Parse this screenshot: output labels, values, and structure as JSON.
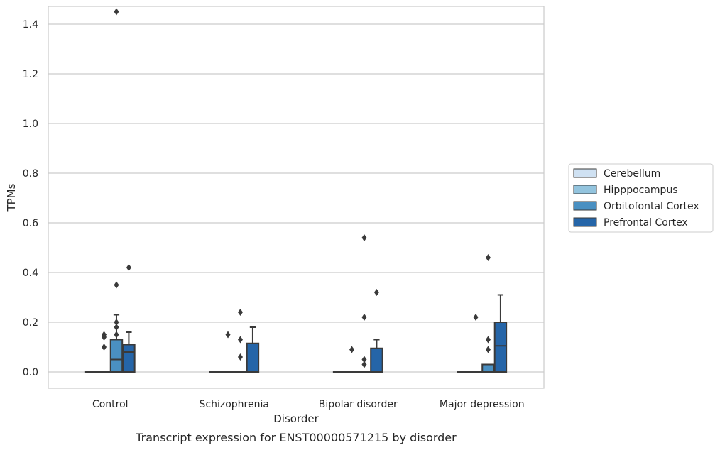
{
  "chart_data": {
    "type": "box",
    "xlabel": "Disorder",
    "ylabel": "TPMs",
    "caption": "Transcript expression for ENST00000571215 by disorder",
    "categories": [
      "Control",
      "Schizophrenia",
      "Bipolar disorder",
      "Major depression"
    ],
    "ylim": [
      -0.07,
      1.52
    ],
    "yticks": [
      0.0,
      0.2,
      0.4,
      0.6,
      0.8,
      1.0,
      1.2,
      1.4
    ],
    "ytick_labels": [
      "0.0",
      "0.2",
      "0.4",
      "0.6",
      "0.8",
      "1.0",
      "1.2",
      "1.4"
    ],
    "grid": "horizontal",
    "legend_position": "right, outside plot",
    "series": [
      {
        "name": "Cerebellum",
        "color": "#cfe1f2",
        "boxes": [
          {
            "q1": 0,
            "median": 0,
            "q3": 0,
            "whisker_low": 0,
            "whisker_high": 0,
            "outliers": []
          },
          {
            "q1": 0,
            "median": 0,
            "q3": 0,
            "whisker_low": 0,
            "whisker_high": 0,
            "outliers": []
          },
          {
            "q1": 0,
            "median": 0,
            "q3": 0,
            "whisker_low": 0,
            "whisker_high": 0,
            "outliers": []
          },
          {
            "q1": 0,
            "median": 0,
            "q3": 0,
            "whisker_low": 0,
            "whisker_high": 0,
            "outliers": []
          }
        ]
      },
      {
        "name": "Hipppocampus",
        "color": "#93c4de",
        "boxes": [
          {
            "q1": 0,
            "median": 0,
            "q3": 0,
            "whisker_low": 0,
            "whisker_high": 0,
            "outliers": [
              0.1,
              0.14,
              0.15
            ]
          },
          {
            "q1": 0,
            "median": 0,
            "q3": 0,
            "whisker_low": 0,
            "whisker_high": 0,
            "outliers": [
              0.15
            ]
          },
          {
            "q1": 0,
            "median": 0,
            "q3": 0,
            "whisker_low": 0,
            "whisker_high": 0,
            "outliers": [
              0.09
            ]
          },
          {
            "q1": 0,
            "median": 0,
            "q3": 0,
            "whisker_low": 0,
            "whisker_high": 0,
            "outliers": [
              0.22
            ]
          }
        ]
      },
      {
        "name": "Orbitofontal Cortex",
        "color": "#4a90c2",
        "boxes": [
          {
            "q1": 0,
            "median": 0.05,
            "q3": 0.13,
            "whisker_low": 0,
            "whisker_high": 0.23,
            "outliers": [
              0.15,
              0.18,
              0.2,
              0.35,
              1.45
            ]
          },
          {
            "q1": 0,
            "median": 0,
            "q3": 0,
            "whisker_low": 0,
            "whisker_high": 0,
            "outliers": [
              0.06,
              0.13,
              0.24
            ]
          },
          {
            "q1": 0,
            "median": 0,
            "q3": 0,
            "whisker_low": 0,
            "whisker_high": 0,
            "outliers": [
              0.03,
              0.05,
              0.22,
              0.54
            ]
          },
          {
            "q1": 0,
            "median": 0,
            "q3": 0.03,
            "whisker_low": 0,
            "whisker_high": 0.03,
            "outliers": [
              0.09,
              0.13,
              0.46
            ]
          }
        ]
      },
      {
        "name": "Prefrontal Cortex",
        "color": "#2565a8",
        "boxes": [
          {
            "q1": 0,
            "median": 0.08,
            "q3": 0.11,
            "whisker_low": 0,
            "whisker_high": 0.16,
            "outliers": [
              0.42
            ]
          },
          {
            "q1": 0,
            "median": 0,
            "q3": 0.115,
            "whisker_low": 0,
            "whisker_high": 0.18,
            "outliers": []
          },
          {
            "q1": 0,
            "median": 0,
            "q3": 0.095,
            "whisker_low": 0,
            "whisker_high": 0.13,
            "outliers": [
              0.32
            ]
          },
          {
            "q1": 0,
            "median": 0.105,
            "q3": 0.2,
            "whisker_low": 0,
            "whisker_high": 0.31,
            "outliers": []
          }
        ]
      }
    ]
  }
}
